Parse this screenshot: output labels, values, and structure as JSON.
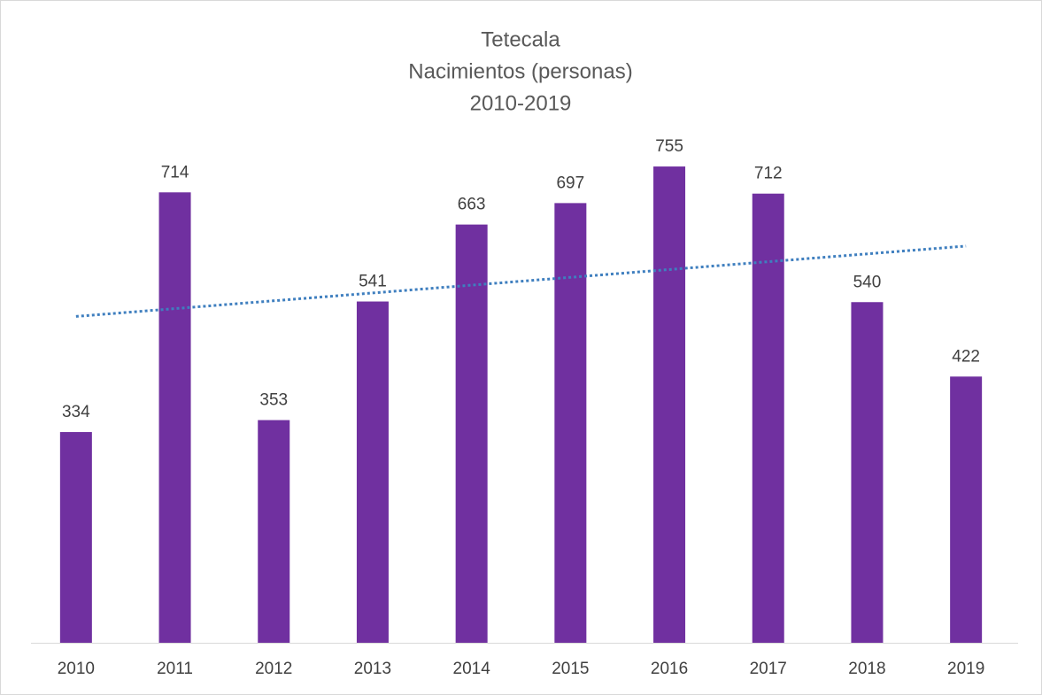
{
  "chart_data": {
    "type": "bar",
    "title": [
      "Tetecala",
      "Nacimientos (personas)",
      "2010-2019"
    ],
    "categories": [
      "2010",
      "2011",
      "2012",
      "2013",
      "2014",
      "2015",
      "2016",
      "2017",
      "2018",
      "2019"
    ],
    "values": [
      334,
      714,
      353,
      541,
      663,
      697,
      755,
      712,
      540,
      422
    ],
    "color": "#7030a0",
    "ylim": [
      0,
      800
    ],
    "trendline": "linear",
    "trendline_color": "#3f7fbf",
    "grid": false
  }
}
